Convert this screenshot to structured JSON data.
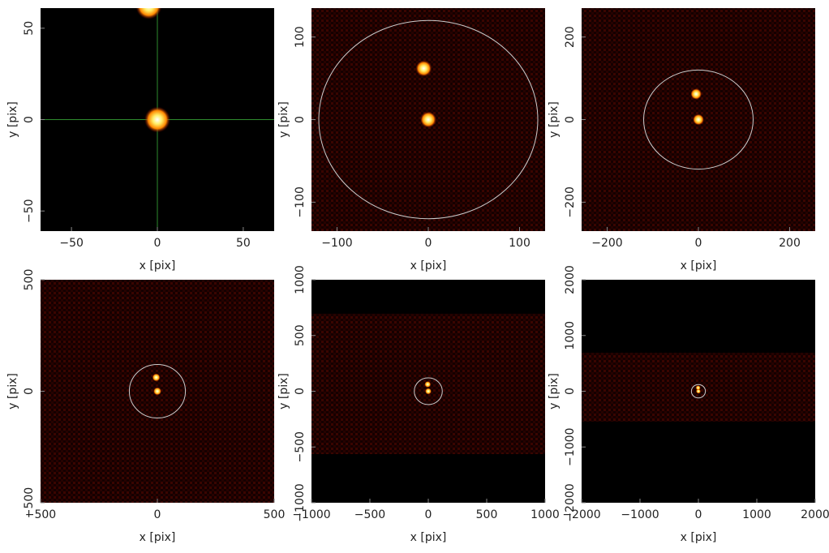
{
  "chart_data": [
    {
      "type": "image",
      "xlabel": "x [pix]",
      "ylabel": "y [pix]",
      "xlim": [
        -68,
        68
      ],
      "ylim": [
        -61,
        61
      ],
      "xticks": [
        {
          "value": -50,
          "label": "−50"
        },
        0,
        50
      ],
      "yticks": [
        {
          "value": -50,
          "label": "−50"
        },
        0,
        50
      ],
      "sources": {
        "x": [
          0,
          -5
        ],
        "y": [
          0,
          62
        ]
      },
      "crosshair": true,
      "crosshair_color": "#2e8b2e"
    },
    {
      "type": "image",
      "xlabel": "x [pix]",
      "ylabel": "y [pix]",
      "xlim": [
        -128,
        128
      ],
      "ylim": [
        -135,
        135
      ],
      "xticks": [
        {
          "value": -100,
          "label": "−100"
        },
        0,
        100
      ],
      "yticks": [
        {
          "value": -100,
          "label": "−100"
        },
        0,
        100
      ],
      "sources": {
        "x": [
          0,
          -5
        ],
        "y": [
          0,
          62
        ]
      },
      "circle_radius": 120
    },
    {
      "type": "image",
      "xlabel": "x [pix]",
      "ylabel": "y [pix]",
      "xlim": [
        -256,
        256
      ],
      "ylim": [
        -270,
        270
      ],
      "xticks": [
        {
          "value": -200,
          "label": "−200"
        },
        0,
        200
      ],
      "yticks": [
        {
          "value": -200,
          "label": "−200"
        },
        0,
        200
      ],
      "sources": {
        "x": [
          0,
          -5
        ],
        "y": [
          0,
          62
        ]
      },
      "circle_radius": 120
    },
    {
      "type": "image",
      "xlabel": "x [pix]",
      "ylabel": "y [pix]",
      "xlim": [
        -500,
        500
      ],
      "ylim": [
        -500,
        500
      ],
      "xticks": [
        {
          "value": -500,
          "label": "−500"
        },
        0,
        500
      ],
      "yticks": [
        {
          "value": -500,
          "label": "−500"
        },
        0,
        500
      ],
      "sources": {
        "x": [
          0,
          -5
        ],
        "y": [
          0,
          62
        ]
      },
      "circle_radius": 120
    },
    {
      "type": "image",
      "xlabel": "x [pix]",
      "ylabel": "y [pix]",
      "xlim": [
        -1000,
        1000
      ],
      "ylim": [
        -1000,
        1000
      ],
      "xticks": [
        {
          "value": -1000,
          "label": "−1000"
        },
        {
          "value": -500,
          "label": "−500"
        },
        0,
        500,
        1000
      ],
      "yticks": [
        {
          "value": -1000,
          "label": "−1000"
        },
        {
          "value": -500,
          "label": "−500"
        },
        0,
        500,
        1000
      ],
      "sources": {
        "x": [
          0,
          -5
        ],
        "y": [
          0,
          62
        ]
      },
      "circle_radius": 120,
      "band_ylim": [
        -564,
        695
      ]
    },
    {
      "type": "image",
      "xlabel": "x [pix]",
      "ylabel": "y [pix]",
      "xlim": [
        -2000,
        2000
      ],
      "ylim": [
        -2000,
        2000
      ],
      "xticks": [
        {
          "value": -2000,
          "label": "−2000"
        },
        {
          "value": -1000,
          "label": "−1000"
        },
        0,
        1000,
        2000
      ],
      "yticks": [
        {
          "value": -2000,
          "label": "−2000"
        },
        {
          "value": -1000,
          "label": "−1000"
        },
        0,
        1000,
        2000
      ],
      "sources": {
        "x": [
          0,
          -5
        ],
        "y": [
          0,
          62
        ]
      },
      "circle_radius": 120,
      "band_ylim": [
        -545,
        691
      ]
    }
  ]
}
